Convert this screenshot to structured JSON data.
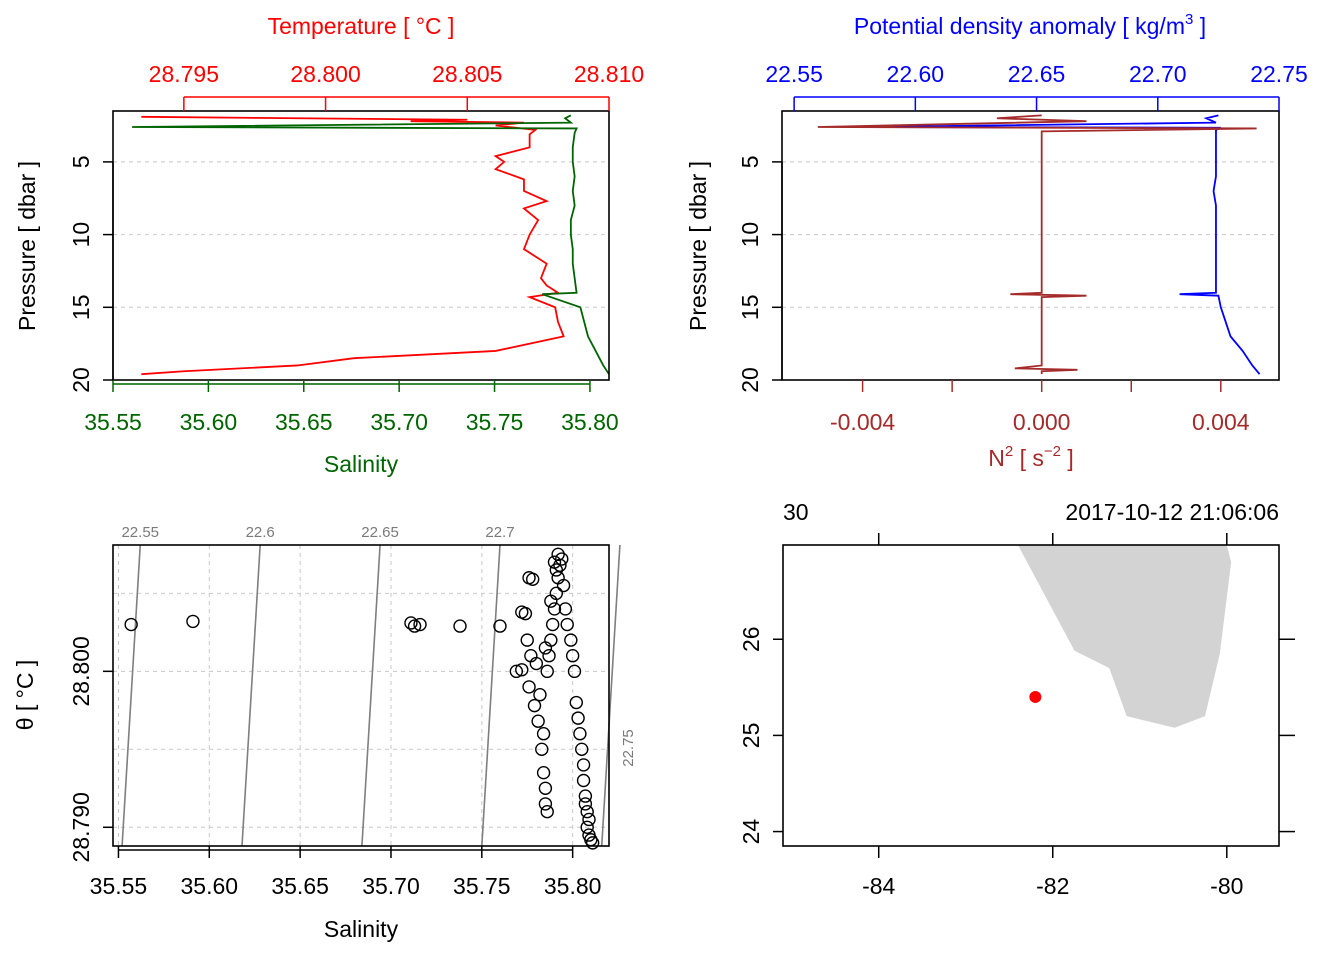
{
  "colors": {
    "temperature": "#ff0000",
    "salinity": "#006400",
    "density": "#0000ff",
    "n2": "#a52a2a",
    "isopycnal": "#7f7f7f",
    "grid": "#c8c8c8",
    "land": "#d3d3d3",
    "station": "#ff0000"
  },
  "chart_data": [
    {
      "id": "temperature_salinity_profile",
      "type": "line",
      "top_axis": {
        "label": "Temperature [ °C ]",
        "range": [
          28.7925,
          28.81
        ],
        "ticks": [
          28.795,
          28.8,
          28.805,
          28.81
        ],
        "tick_labels": [
          "28.795",
          "28.800",
          "28.805",
          "28.810"
        ]
      },
      "bottom_axis": {
        "label": "Salinity",
        "range": [
          35.55,
          35.81
        ],
        "ticks": [
          35.55,
          35.6,
          35.65,
          35.7,
          35.75,
          35.8
        ],
        "tick_labels": [
          "35.55",
          "35.60",
          "35.65",
          "35.70",
          "35.75",
          "35.80"
        ]
      },
      "y_axis": {
        "label": "Pressure [ dbar ]",
        "range": [
          20,
          1.5
        ],
        "ticks": [
          5,
          10,
          15,
          20
        ],
        "tick_labels": [
          "5",
          "10",
          "15",
          "20"
        ]
      },
      "grid": true,
      "series": [
        {
          "name": "Temperature",
          "pressure": [
            1.9,
            2.0,
            2.1,
            2.2,
            2.3,
            2.5,
            2.8,
            3.1,
            3.4,
            4.0,
            4.6,
            5.0,
            5.5,
            6.2,
            7.0,
            7.7,
            8.2,
            9.0,
            10.0,
            11.0,
            12.0,
            13.0,
            13.5,
            14.0,
            14.3,
            15.0,
            16.0,
            17.0,
            18.0,
            18.5,
            19.0,
            19.4,
            19.6
          ],
          "values": [
            28.7935,
            28.799,
            28.805,
            28.803,
            28.807,
            28.806,
            28.8074,
            28.8072,
            28.8072,
            28.8072,
            28.806,
            28.8063,
            28.806,
            28.807,
            28.807,
            28.8078,
            28.807,
            28.8075,
            28.8072,
            28.807,
            28.8078,
            28.8076,
            28.8078,
            28.8082,
            28.8072,
            28.8081,
            28.8082,
            28.8084,
            28.806,
            28.801,
            28.799,
            28.795,
            28.7935
          ]
        },
        {
          "name": "Salinity",
          "pressure": [
            1.8,
            2.0,
            2.3,
            2.6,
            2.7,
            3.0,
            4.0,
            5.0,
            6.0,
            7.0,
            8.0,
            9.0,
            10.0,
            11.0,
            12.0,
            13.0,
            14.0,
            14.1,
            15.0,
            16.0,
            17.0,
            18.0,
            19.0,
            19.6
          ],
          "values": [
            35.79,
            35.787,
            35.79,
            35.56,
            35.793,
            35.792,
            35.791,
            35.791,
            35.792,
            35.791,
            35.792,
            35.79,
            35.79,
            35.791,
            35.791,
            35.792,
            35.793,
            35.775,
            35.795,
            35.797,
            35.799,
            35.803,
            35.807,
            35.81
          ]
        }
      ]
    },
    {
      "id": "density_n2_profile",
      "type": "line",
      "top_axis": {
        "label_main": "Potential density anomaly [ kg/m",
        "label_sup": "3",
        "label_tail": " ]",
        "range": [
          22.545,
          22.75
        ],
        "ticks": [
          22.55,
          22.6,
          22.65,
          22.7,
          22.75
        ],
        "tick_labels": [
          "22.55",
          "22.60",
          "22.65",
          "22.70",
          "22.75"
        ]
      },
      "bottom_axis": {
        "label_main": "N",
        "label_sup1": "2",
        "label_mid": " [ s",
        "label_sup2": "−2",
        "label_tail": " ]",
        "range": [
          -0.0058,
          0.0053
        ],
        "ticks": [
          -0.004,
          0.0,
          0.004
        ],
        "minor_ticks": [
          -0.002,
          0.002
        ],
        "tick_labels": [
          "-0.004",
          "0.000",
          "0.004"
        ]
      },
      "y_axis": {
        "label": "Pressure [ dbar ]",
        "range": [
          20,
          1.5
        ],
        "ticks": [
          5,
          10,
          15,
          20
        ],
        "tick_labels": [
          "5",
          "10",
          "15",
          "20"
        ]
      },
      "grid": true,
      "series": [
        {
          "name": "Potential density anomaly",
          "pressure": [
            1.8,
            2.0,
            2.3,
            2.6,
            2.65,
            2.8,
            3.5,
            5.0,
            6.0,
            7.0,
            8.0,
            10.0,
            12.0,
            13.0,
            14.0,
            14.1,
            14.2,
            15.0,
            16.0,
            17.0,
            18.0,
            19.0,
            19.6
          ],
          "values": [
            22.725,
            22.72,
            22.724,
            22.58,
            22.726,
            22.724,
            22.724,
            22.724,
            22.724,
            22.723,
            22.724,
            22.724,
            22.724,
            22.724,
            22.724,
            22.709,
            22.725,
            22.726,
            22.728,
            22.73,
            22.735,
            22.739,
            22.742
          ]
        },
        {
          "name": "N2",
          "pressure": [
            1.8,
            2.0,
            2.2,
            2.4,
            2.6,
            2.7,
            2.9,
            3.5,
            5.0,
            7.0,
            8.0,
            10.0,
            12.0,
            14.0,
            14.1,
            14.2,
            14.3,
            15.0,
            17.0,
            19.0,
            19.2,
            19.3,
            19.4,
            19.6
          ],
          "values": [
            0.0,
            -0.001,
            0.001,
            -0.002,
            -0.005,
            0.0048,
            0.0,
            0.0,
            0.0,
            0.0,
            0.0,
            0.0,
            0.0,
            0.0,
            -0.0007,
            0.001,
            0.0,
            0.0,
            0.0,
            0.0,
            -0.0006,
            0.0008,
            0.0,
            0.0
          ]
        }
      ]
    },
    {
      "id": "theta_salinity_diagram",
      "type": "scatter",
      "x_axis": {
        "label": "Salinity",
        "range": [
          35.547,
          35.82
        ],
        "ticks": [
          35.55,
          35.6,
          35.65,
          35.7,
          35.75,
          35.8
        ],
        "tick_labels": [
          "35.55",
          "35.60",
          "35.65",
          "35.70",
          "35.75",
          "35.80"
        ]
      },
      "y_axis": {
        "label": "θ [ °C ]",
        "range": [
          28.7888,
          28.8081
        ],
        "ticks": [
          28.79,
          28.8
        ],
        "tick_labels": [
          "28.790",
          "28.800"
        ]
      },
      "grid": true,
      "isopycnals": [
        {
          "sigma": 22.55,
          "label": "22.55",
          "s_bottom": 35.552,
          "s_top": 35.562
        },
        {
          "sigma": 22.6,
          "label": "22.6",
          "s_bottom": 35.618,
          "s_top": 35.628
        },
        {
          "sigma": 22.65,
          "label": "22.65",
          "s_bottom": 35.684,
          "s_top": 35.694
        },
        {
          "sigma": 22.7,
          "label": "22.7",
          "s_bottom": 35.75,
          "s_top": 35.76
        },
        {
          "sigma": 22.75,
          "label": "22.75",
          "s_bottom": 35.816,
          "s_top": 35.826
        }
      ],
      "points": [
        [
          35.557,
          28.803
        ],
        [
          35.591,
          28.8032
        ],
        [
          35.711,
          28.8031
        ],
        [
          35.713,
          28.8029
        ],
        [
          35.716,
          28.803
        ],
        [
          35.738,
          28.8029
        ],
        [
          35.76,
          28.8029
        ],
        [
          35.769,
          28.8
        ],
        [
          35.772,
          28.8001
        ],
        [
          35.774,
          28.8037
        ],
        [
          35.776,
          28.806
        ],
        [
          35.778,
          28.8059
        ],
        [
          35.772,
          28.8038
        ],
        [
          35.775,
          28.802
        ],
        [
          35.777,
          28.801
        ],
        [
          35.776,
          28.799
        ],
        [
          35.779,
          28.7978
        ],
        [
          35.781,
          28.7968
        ],
        [
          35.783,
          28.795
        ],
        [
          35.784,
          28.7935
        ],
        [
          35.785,
          28.7925
        ],
        [
          35.785,
          28.7915
        ],
        [
          35.786,
          28.791
        ],
        [
          35.782,
          28.7985
        ],
        [
          35.784,
          28.796
        ],
        [
          35.786,
          28.8
        ],
        [
          35.788,
          28.802
        ],
        [
          35.79,
          28.804
        ],
        [
          35.791,
          28.805
        ],
        [
          35.792,
          28.806
        ],
        [
          35.793,
          28.8068
        ],
        [
          35.794,
          28.8072
        ],
        [
          35.792,
          28.8075
        ],
        [
          35.79,
          28.807
        ],
        [
          35.789,
          28.803
        ],
        [
          35.787,
          28.801
        ],
        [
          35.796,
          28.804
        ],
        [
          35.797,
          28.803
        ],
        [
          35.799,
          28.802
        ],
        [
          35.8,
          28.801
        ],
        [
          35.801,
          28.8
        ],
        [
          35.802,
          28.798
        ],
        [
          35.803,
          28.797
        ],
        [
          35.804,
          28.796
        ],
        [
          35.805,
          28.795
        ],
        [
          35.806,
          28.794
        ],
        [
          35.806,
          28.793
        ],
        [
          35.807,
          28.792
        ],
        [
          35.808,
          28.791
        ],
        [
          35.808,
          28.79
        ],
        [
          35.809,
          28.7895
        ],
        [
          35.81,
          28.7892
        ],
        [
          35.811,
          28.789
        ],
        [
          35.809,
          28.7905
        ],
        [
          35.807,
          28.7915
        ],
        [
          35.795,
          28.8055
        ],
        [
          35.791,
          28.8065
        ],
        [
          35.788,
          28.8045
        ],
        [
          35.785,
          28.8015
        ],
        [
          35.78,
          28.8005
        ]
      ]
    },
    {
      "id": "station_map",
      "type": "scatter",
      "x_axis": {
        "range": [
          -85.1,
          -79.4
        ],
        "ticks": [
          -84,
          -82,
          -80
        ],
        "tick_labels": [
          "-84",
          "-82",
          "-80"
        ]
      },
      "y_axis": {
        "range": [
          23.85,
          26.98
        ],
        "ticks": [
          24,
          25,
          26
        ],
        "tick_labels": [
          "24",
          "25",
          "26"
        ]
      },
      "top_left_label": "30",
      "top_right_label": "2017-10-12 21:06:06",
      "station": {
        "lon": -82.2,
        "lat": 25.4
      },
      "land_polygon": [
        [
          -82.4,
          26.98
        ],
        [
          -80.0,
          26.98
        ],
        [
          -79.95,
          26.8
        ],
        [
          -80.08,
          25.85
        ],
        [
          -80.25,
          25.2
        ],
        [
          -80.6,
          25.08
        ],
        [
          -81.15,
          25.2
        ],
        [
          -81.35,
          25.7
        ],
        [
          -81.75,
          25.88
        ],
        [
          -82.4,
          26.98
        ]
      ]
    }
  ]
}
